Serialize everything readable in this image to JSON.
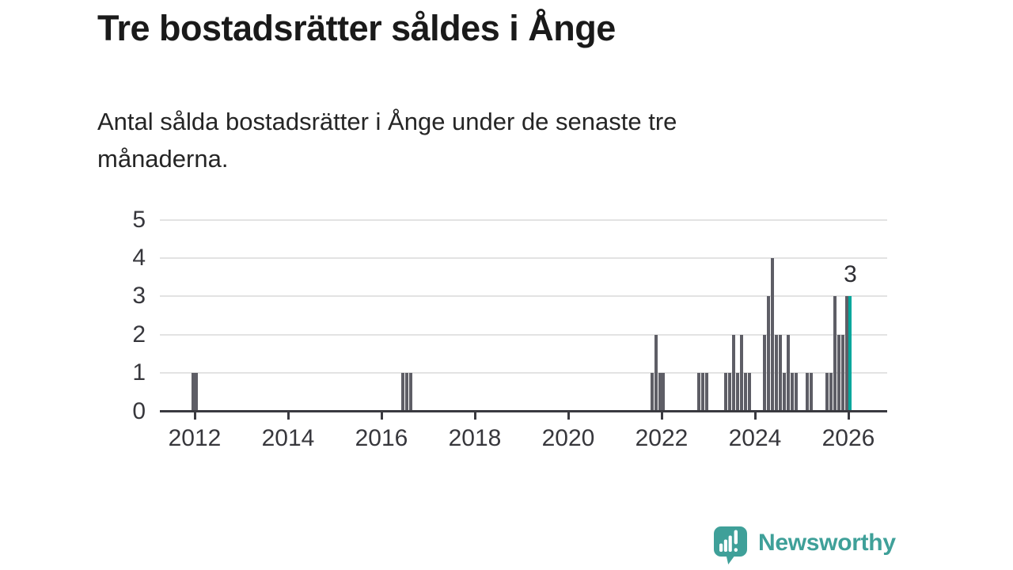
{
  "header": {
    "title": "Tre bostadsrätter såldes i Ånge",
    "subtitle_line1": "Antal sålda bostadsrätter i Ånge under de senaste tre",
    "subtitle_line2": "månaderna."
  },
  "branding": {
    "name": "Newsworthy",
    "color": "#3fa099"
  },
  "colors": {
    "bar": "#5e5e66",
    "highlight": "#00a79c",
    "grid": "#e3e3e3",
    "axis": "#3a3a40",
    "tick_text": "#37373c",
    "title_text": "#1a1a1a"
  },
  "chart_data": {
    "type": "bar",
    "title": "Tre bostadsrätter såldes i Ånge",
    "subtitle": "Antal sålda bostadsrätter i Ånge under de senaste tre månaderna.",
    "xlabel": "",
    "ylabel": "",
    "x_unit": "month",
    "ylim": [
      0,
      5
    ],
    "ytick_labels": [
      "0",
      "1",
      "2",
      "3",
      "4",
      "5"
    ],
    "xtick_years": [
      2012,
      2014,
      2016,
      2018,
      2020,
      2022,
      2024,
      2026
    ],
    "xtick_labels": [
      "2012",
      "2014",
      "2016",
      "2018",
      "2020",
      "2022",
      "2024",
      "2026"
    ],
    "grid": true,
    "legend": false,
    "points": [
      {
        "month": "2011-12",
        "value": 1
      },
      {
        "month": "2012-01",
        "value": 1
      },
      {
        "month": "2016-06",
        "value": 1
      },
      {
        "month": "2016-07",
        "value": 1
      },
      {
        "month": "2016-08",
        "value": 1
      },
      {
        "month": "2021-10",
        "value": 1
      },
      {
        "month": "2021-11",
        "value": 2
      },
      {
        "month": "2021-12",
        "value": 1
      },
      {
        "month": "2022-01",
        "value": 1
      },
      {
        "month": "2022-10",
        "value": 1
      },
      {
        "month": "2022-11",
        "value": 1
      },
      {
        "month": "2022-12",
        "value": 1
      },
      {
        "month": "2023-05",
        "value": 1
      },
      {
        "month": "2023-06",
        "value": 1
      },
      {
        "month": "2023-07",
        "value": 2
      },
      {
        "month": "2023-08",
        "value": 1
      },
      {
        "month": "2023-09",
        "value": 2
      },
      {
        "month": "2023-10",
        "value": 1
      },
      {
        "month": "2023-11",
        "value": 1
      },
      {
        "month": "2024-03",
        "value": 2
      },
      {
        "month": "2024-04",
        "value": 3
      },
      {
        "month": "2024-05",
        "value": 4
      },
      {
        "month": "2024-06",
        "value": 2
      },
      {
        "month": "2024-07",
        "value": 2
      },
      {
        "month": "2024-08",
        "value": 1
      },
      {
        "month": "2024-09",
        "value": 2
      },
      {
        "month": "2024-10",
        "value": 1
      },
      {
        "month": "2024-11",
        "value": 1
      },
      {
        "month": "2025-02",
        "value": 1
      },
      {
        "month": "2025-03",
        "value": 1
      },
      {
        "month": "2025-07",
        "value": 1
      },
      {
        "month": "2025-08",
        "value": 1
      },
      {
        "month": "2025-09",
        "value": 3
      },
      {
        "month": "2025-10",
        "value": 2
      },
      {
        "month": "2025-11",
        "value": 2
      },
      {
        "month": "2025-12",
        "value": 3
      },
      {
        "month": "2026-01",
        "value": 3,
        "highlight": true
      }
    ],
    "highlight": {
      "month": "2026-01",
      "value": 3,
      "label": "3"
    }
  }
}
